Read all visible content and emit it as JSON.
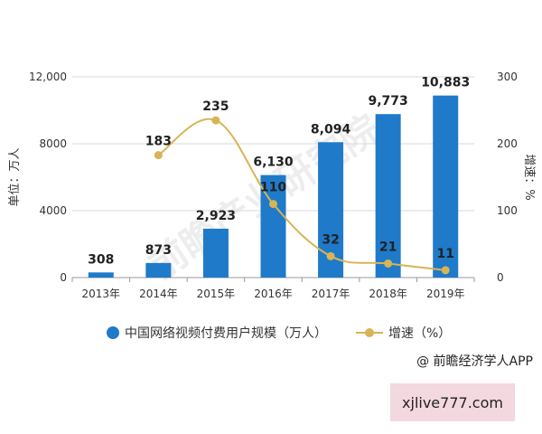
{
  "chart_data": {
    "type": "bar+line",
    "categories": [
      "2013年",
      "2014年",
      "2015年",
      "2016年",
      "2017年",
      "2018年",
      "2019年"
    ],
    "series": [
      {
        "name": "中国网络视频付费用户规模（万人）",
        "type": "bar",
        "axis": "left",
        "values": [
          308,
          873,
          2923,
          6130,
          8094,
          9773,
          10883
        ],
        "labels": [
          "308",
          "873",
          "2,923",
          "6,130",
          "8,094",
          "9,773",
          "10,883"
        ],
        "color": "#1f7ac9"
      },
      {
        "name": "增速（%）",
        "type": "line",
        "axis": "right",
        "values": [
          null,
          183,
          235,
          110,
          32,
          21,
          11
        ],
        "labels": [
          "",
          "183",
          "235",
          "110",
          "32",
          "21",
          "11"
        ],
        "color": "#d8b455"
      }
    ],
    "ylabel_left": "单位：万人",
    "ylabel_right": "增速：%",
    "ylim_left": [
      0,
      12000
    ],
    "ylim_right": [
      0,
      300
    ],
    "yticks_left": [
      "0",
      "4000",
      "8000",
      "12,000"
    ],
    "yticks_right": [
      "0",
      "100",
      "200",
      "300"
    ],
    "grid": true
  },
  "legend": {
    "bar_label": "中国网络视频付费用户规模（万人）",
    "line_label": "增速（%）"
  },
  "source": "@ 前瞻经济学人APP",
  "watermark_text": "前瞻产业研究院",
  "overlay_label": "xjlive777.com"
}
